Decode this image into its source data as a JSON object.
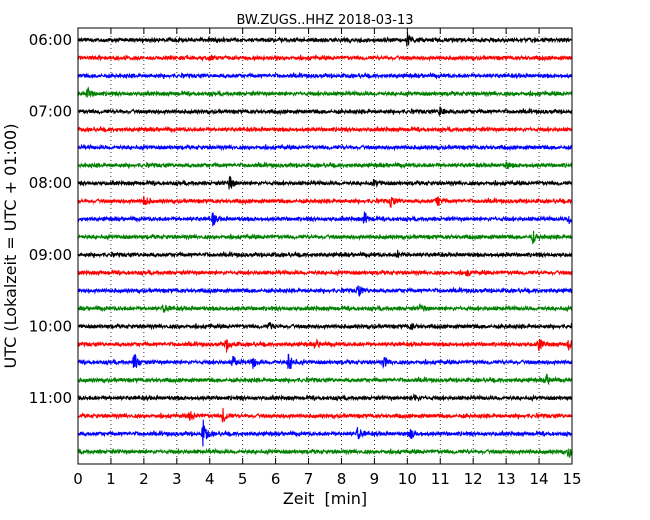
{
  "chart_data": {
    "type": "line",
    "title": "BW.ZUGS..HHZ 2018-03-13",
    "xlabel": "Zeit  [min]",
    "ylabel": "UTC (Lokalzeit = UTC + 01:00)",
    "xlim": [
      0,
      15
    ],
    "x_ticks": [
      0,
      1,
      2,
      3,
      4,
      5,
      6,
      7,
      8,
      9,
      10,
      11,
      12,
      13,
      14,
      15
    ],
    "x_tick_labels": [
      "0",
      "1",
      "2",
      "3",
      "4",
      "5",
      "6",
      "7",
      "8",
      "9",
      "10",
      "11",
      "12",
      "13",
      "14",
      "15"
    ],
    "y_tick_labels": [
      "06:00",
      "07:00",
      "08:00",
      "09:00",
      "10:00",
      "11:00"
    ],
    "grid": "vertical dotted lines at each minute",
    "trace_colors": [
      "#000000",
      "#ff0000",
      "#0000ff",
      "#008000"
    ],
    "start_time": "06:00",
    "trace_interval_minutes": 15,
    "trace_count": 24,
    "events": [
      {
        "trace": "06:00",
        "minute": 10.0,
        "amplitude": 0.35
      },
      {
        "trace": "06:15",
        "minute": 4.0,
        "amplitude": 0.12
      },
      {
        "trace": "06:45",
        "minute": 0.3,
        "amplitude": 0.3
      },
      {
        "trace": "07:00",
        "minute": 11.0,
        "amplitude": 0.3
      },
      {
        "trace": "07:45",
        "minute": 13.0,
        "amplitude": 0.2
      },
      {
        "trace": "08:00",
        "minute": 4.6,
        "amplitude": 0.4
      },
      {
        "trace": "08:00",
        "minute": 9.0,
        "amplitude": 0.2
      },
      {
        "trace": "08:15",
        "minute": 2.0,
        "amplitude": 0.3
      },
      {
        "trace": "08:15",
        "minute": 9.5,
        "amplitude": 0.35
      },
      {
        "trace": "08:15",
        "minute": 10.9,
        "amplitude": 0.35
      },
      {
        "trace": "08:30",
        "minute": 4.1,
        "amplitude": 0.35
      },
      {
        "trace": "08:30",
        "minute": 8.7,
        "amplitude": 0.35
      },
      {
        "trace": "08:30",
        "minute": 14.9,
        "amplitude": 0.25
      },
      {
        "trace": "08:45",
        "minute": 13.8,
        "amplitude": 0.35
      },
      {
        "trace": "09:00",
        "minute": 9.7,
        "amplitude": 0.2
      },
      {
        "trace": "09:15",
        "minute": 11.8,
        "amplitude": 0.15
      },
      {
        "trace": "09:30",
        "minute": 8.5,
        "amplitude": 0.4
      },
      {
        "trace": "09:45",
        "minute": 2.6,
        "amplitude": 0.25
      },
      {
        "trace": "09:45",
        "minute": 10.4,
        "amplitude": 0.25
      },
      {
        "trace": "10:00",
        "minute": 5.8,
        "amplitude": 0.25
      },
      {
        "trace": "10:00",
        "minute": 10.1,
        "amplitude": 0.2
      },
      {
        "trace": "10:15",
        "minute": 4.5,
        "amplitude": 0.4
      },
      {
        "trace": "10:15",
        "minute": 7.2,
        "amplitude": 0.25
      },
      {
        "trace": "10:15",
        "minute": 14.0,
        "amplitude": 0.35
      },
      {
        "trace": "10:15",
        "minute": 14.9,
        "amplitude": 0.35
      },
      {
        "trace": "10:30",
        "minute": 1.7,
        "amplitude": 0.55
      },
      {
        "trace": "10:30",
        "minute": 4.7,
        "amplitude": 0.45
      },
      {
        "trace": "10:30",
        "minute": 5.3,
        "amplitude": 0.35
      },
      {
        "trace": "10:30",
        "minute": 6.4,
        "amplitude": 0.55
      },
      {
        "trace": "10:30",
        "minute": 9.3,
        "amplitude": 0.35
      },
      {
        "trace": "10:45",
        "minute": 14.2,
        "amplitude": 0.35
      },
      {
        "trace": "11:00",
        "minute": 10.2,
        "amplitude": 0.2
      },
      {
        "trace": "11:15",
        "minute": 3.4,
        "amplitude": 0.3
      },
      {
        "trace": "11:15",
        "minute": 4.4,
        "amplitude": 0.4
      },
      {
        "trace": "11:30",
        "minute": 3.8,
        "amplitude": 0.7
      },
      {
        "trace": "11:30",
        "minute": 8.5,
        "amplitude": 0.4
      },
      {
        "trace": "11:30",
        "minute": 10.1,
        "amplitude": 0.3
      },
      {
        "trace": "11:45",
        "minute": 14.9,
        "amplitude": 0.35
      }
    ]
  }
}
